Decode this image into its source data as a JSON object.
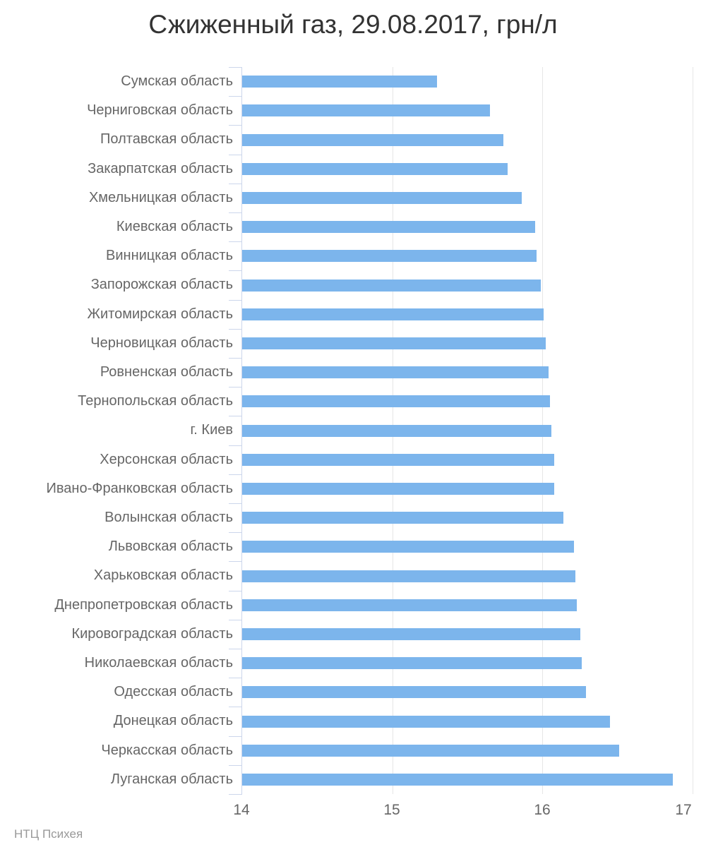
{
  "header": {
    "title": "Сжиженный газ, 29.08.2017, грн/л"
  },
  "credits": {
    "label": "НТЦ Психея"
  },
  "colors": {
    "bar": "#7cb5ec",
    "axis_line": "#ccd6eb",
    "gridline": "#e6e6e6",
    "title_text": "#333333",
    "label_text": "#666666",
    "credits_text": "#999999"
  },
  "chart_data": {
    "type": "bar",
    "orientation": "horizontal",
    "title": "Сжиженный газ, 29.08.2017, грн/л",
    "xlabel": "",
    "ylabel": "",
    "xlim": [
      14,
      17
    ],
    "x_ticks": [
      14,
      15,
      16,
      17
    ],
    "grid": true,
    "legend": false,
    "unit": "грн/л",
    "categories": [
      "Сумская область",
      "Черниговская область",
      "Полтавская область",
      "Закарпатская область",
      "Хмельницкая область",
      "Киевская область",
      "Винницкая область",
      "Запорожская область",
      "Житомирская область",
      "Черновицкая область",
      "Ровненская область",
      "Тернопольская область",
      "г. Киев",
      "Херсонская область",
      "Ивано-Франковская область",
      "Волынская область",
      "Львовская область",
      "Харьковская область",
      "Днепропетровская область",
      "Кировоградская область",
      "Николаевская область",
      "Одесская область",
      "Донецкая область",
      "Черкасская область",
      "Луганская область"
    ],
    "values": [
      15.3,
      15.65,
      15.74,
      15.77,
      15.86,
      15.95,
      15.96,
      15.99,
      16.01,
      16.02,
      16.04,
      16.05,
      16.06,
      16.08,
      16.08,
      16.14,
      16.21,
      16.22,
      16.23,
      16.25,
      16.26,
      16.29,
      16.45,
      16.51,
      16.87
    ]
  }
}
